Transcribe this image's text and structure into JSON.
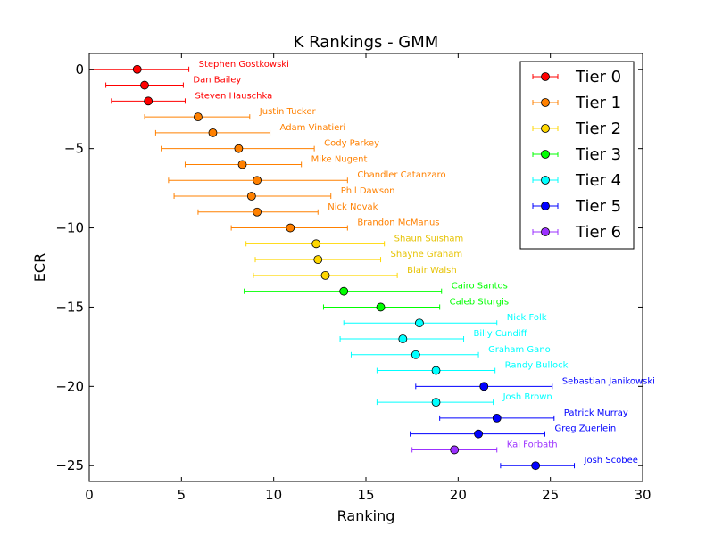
{
  "chart_data": {
    "type": "scatter",
    "title": "K Rankings - GMM",
    "xlabel": "Ranking",
    "ylabel": "ECR",
    "xlim": [
      0,
      30
    ],
    "ylim": [
      -26,
      1
    ],
    "xticks": [
      "0",
      "5",
      "10",
      "15",
      "20",
      "25",
      "30"
    ],
    "yticks": [
      "0",
      "−5",
      "−10",
      "−15",
      "−20",
      "−25"
    ],
    "grid": false,
    "legend_position": "top-right",
    "legend": [
      {
        "name": "Tier 0",
        "color": "#ff0000"
      },
      {
        "name": "Tier 1",
        "color": "#ff8000"
      },
      {
        "name": "Tier 2",
        "color": "#ffd700"
      },
      {
        "name": "Tier 3",
        "color": "#00ff00"
      },
      {
        "name": "Tier 4",
        "color": "#00ffff"
      },
      {
        "name": "Tier 5",
        "color": "#0000ff"
      },
      {
        "name": "Tier 6",
        "color": "#9b30ff"
      }
    ],
    "players": [
      {
        "name": "Stephen Gostkowski",
        "x": 2.6,
        "y": 0,
        "lo": 0.0,
        "hi": 5.4,
        "tier": 0
      },
      {
        "name": "Dan Bailey",
        "x": 3.0,
        "y": -1,
        "lo": 0.9,
        "hi": 5.1,
        "tier": 0
      },
      {
        "name": "Steven Hauschka",
        "x": 3.2,
        "y": -2,
        "lo": 1.2,
        "hi": 5.2,
        "tier": 0
      },
      {
        "name": "Justin Tucker",
        "x": 5.9,
        "y": -3,
        "lo": 3.0,
        "hi": 8.7,
        "tier": 1
      },
      {
        "name": "Adam Vinatieri",
        "x": 6.7,
        "y": -4,
        "lo": 3.6,
        "hi": 9.8,
        "tier": 1
      },
      {
        "name": "Cody Parkey",
        "x": 8.1,
        "y": -5,
        "lo": 3.9,
        "hi": 12.2,
        "tier": 1
      },
      {
        "name": "Mike Nugent",
        "x": 8.3,
        "y": -6,
        "lo": 5.2,
        "hi": 11.5,
        "tier": 1
      },
      {
        "name": "Chandler Catanzaro",
        "x": 9.1,
        "y": -7,
        "lo": 4.3,
        "hi": 14.0,
        "tier": 1
      },
      {
        "name": "Phil Dawson",
        "x": 8.8,
        "y": -8,
        "lo": 4.6,
        "hi": 13.1,
        "tier": 1
      },
      {
        "name": "Nick Novak",
        "x": 9.1,
        "y": -9,
        "lo": 5.9,
        "hi": 12.4,
        "tier": 1
      },
      {
        "name": "Brandon McManus",
        "x": 10.9,
        "y": -10,
        "lo": 7.7,
        "hi": 14.0,
        "tier": 1
      },
      {
        "name": "Shaun Suisham",
        "x": 12.3,
        "y": -11,
        "lo": 8.5,
        "hi": 16.0,
        "tier": 2
      },
      {
        "name": "Shayne Graham",
        "x": 12.4,
        "y": -12,
        "lo": 9.0,
        "hi": 15.8,
        "tier": 2
      },
      {
        "name": "Blair Walsh",
        "x": 12.8,
        "y": -13,
        "lo": 8.9,
        "hi": 16.7,
        "tier": 2
      },
      {
        "name": "Cairo Santos",
        "x": 13.8,
        "y": -14,
        "lo": 8.4,
        "hi": 19.1,
        "tier": 3
      },
      {
        "name": "Caleb Sturgis",
        "x": 15.8,
        "y": -15,
        "lo": 12.7,
        "hi": 19.0,
        "tier": 3
      },
      {
        "name": "Nick Folk",
        "x": 17.9,
        "y": -16,
        "lo": 13.8,
        "hi": 22.1,
        "tier": 4
      },
      {
        "name": "Billy Cundiff",
        "x": 17.0,
        "y": -17,
        "lo": 13.6,
        "hi": 20.3,
        "tier": 4
      },
      {
        "name": "Graham Gano",
        "x": 17.7,
        "y": -18,
        "lo": 14.2,
        "hi": 21.1,
        "tier": 4
      },
      {
        "name": "Randy Bullock",
        "x": 18.8,
        "y": -19,
        "lo": 15.6,
        "hi": 22.0,
        "tier": 4
      },
      {
        "name": "Sebastian Janikowski",
        "x": 21.4,
        "y": -20,
        "lo": 17.7,
        "hi": 25.1,
        "tier": 5
      },
      {
        "name": "Josh Brown",
        "x": 18.8,
        "y": -21,
        "lo": 15.6,
        "hi": 21.9,
        "tier": 4
      },
      {
        "name": "Patrick Murray",
        "x": 22.1,
        "y": -22,
        "lo": 19.0,
        "hi": 25.2,
        "tier": 5
      },
      {
        "name": "Greg Zuerlein",
        "x": 21.1,
        "y": -23,
        "lo": 17.4,
        "hi": 24.7,
        "tier": 5
      },
      {
        "name": "Kai Forbath",
        "x": 19.8,
        "y": -24,
        "lo": 17.5,
        "hi": 22.1,
        "tier": 6
      },
      {
        "name": "Josh Scobee",
        "x": 24.2,
        "y": -25,
        "lo": 22.3,
        "hi": 26.3,
        "tier": 5
      }
    ]
  }
}
